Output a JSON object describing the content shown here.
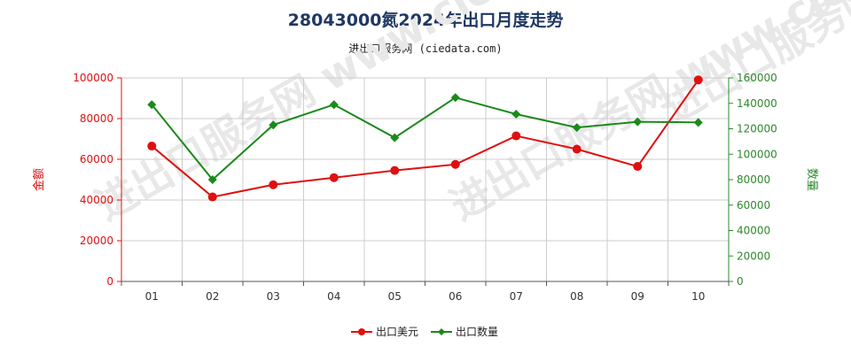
{
  "title": "28043000氮2024年出口月度走势",
  "subtitle": "进出口服务网 (ciedata.com)",
  "watermark": "进出口服务网 www.ciedata.com",
  "colors": {
    "left": "#e01010",
    "right": "#1a8a1a",
    "grid": "#cccccc"
  },
  "chart_data": {
    "type": "line",
    "title": "28043000氮2024年出口月度走势",
    "categories": [
      "01",
      "02",
      "03",
      "04",
      "05",
      "06",
      "07",
      "08",
      "09",
      "10"
    ],
    "y_left": {
      "label": "金额",
      "ylim": [
        0,
        100000
      ],
      "ticks": [
        0,
        20000,
        40000,
        60000,
        80000,
        100000
      ]
    },
    "y_right": {
      "label": "数量",
      "ylim": [
        0,
        160000
      ],
      "ticks": [
        0,
        20000,
        40000,
        60000,
        80000,
        100000,
        120000,
        140000,
        160000
      ]
    },
    "grid": true,
    "legend_position": "bottom",
    "series": [
      {
        "name": "出口美元",
        "axis": "left",
        "color": "#e01010",
        "marker": "circle",
        "values": [
          66500,
          41500,
          47500,
          51000,
          54500,
          57500,
          71500,
          65000,
          56500,
          99000
        ]
      },
      {
        "name": "出口数量",
        "axis": "right",
        "color": "#1a8a1a",
        "marker": "diamond",
        "values": [
          139000,
          80000,
          123000,
          139000,
          113000,
          144500,
          131500,
          121000,
          125500,
          125000
        ]
      }
    ]
  }
}
